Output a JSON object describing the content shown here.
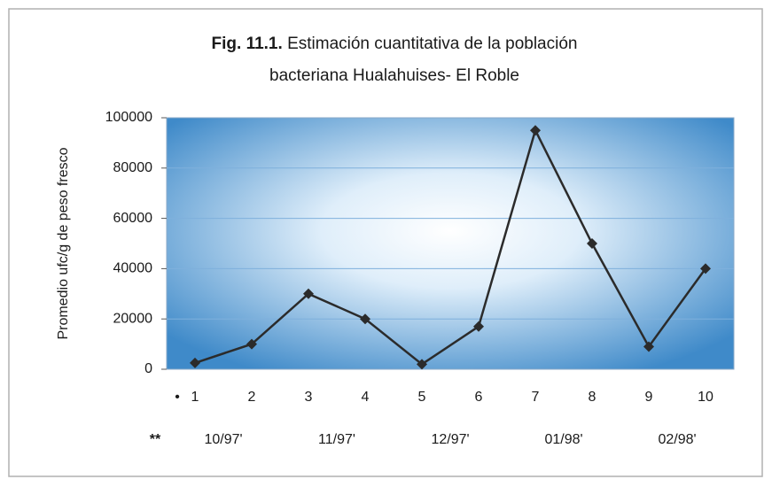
{
  "chart_data": {
    "type": "line",
    "title": {
      "label": "Fig. 11.1.",
      "lines": [
        "Estimación cuantitativa de la población",
        "bacteriana Hualahuises- El Roble"
      ]
    },
    "y_label": "Promedio ufc/g de peso fresco",
    "category_marker": "•",
    "categories": [
      "1",
      "2",
      "3",
      "4",
      "5",
      "6",
      "7",
      "8",
      "9",
      "10"
    ],
    "group_marker": "**",
    "groups": [
      "10/97'",
      "11/97'",
      "12/97'",
      "01/98'",
      "02/98'"
    ],
    "series": [
      {
        "name": null,
        "color": "#2b2b2b",
        "values": [
          2500,
          10000,
          30000,
          20000,
          2000,
          17000,
          95000,
          50000,
          9000,
          40000
        ]
      }
    ],
    "ylim": [
      0,
      100000
    ],
    "yticks": [
      0,
      20000,
      40000,
      60000,
      80000,
      100000
    ],
    "grid": true
  }
}
